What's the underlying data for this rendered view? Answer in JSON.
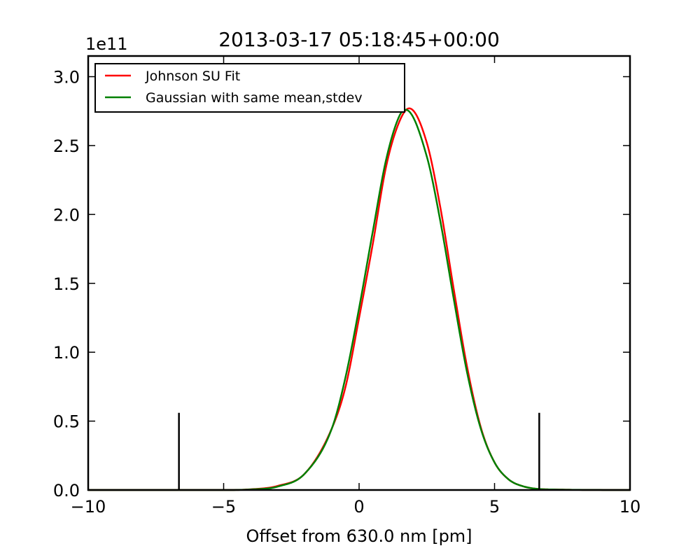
{
  "chart_data": {
    "type": "line",
    "title": "2013-03-17 05:18:45+00:00",
    "xlabel": "Offset from 630.0 nm [pm]",
    "ylabel": "",
    "y_multiplier_label": "1e11",
    "xlim": [
      -10,
      10
    ],
    "ylim": [
      0,
      3.15
    ],
    "x_ticks": [
      -10,
      -5,
      0,
      5,
      10
    ],
    "x_tick_labels": [
      "−10",
      "−5",
      "0",
      "5",
      "10"
    ],
    "y_ticks": [
      0.0,
      0.5,
      1.0,
      1.5,
      2.0,
      2.5,
      3.0
    ],
    "y_tick_labels": [
      "0.0",
      "0.5",
      "1.0",
      "1.5",
      "2.0",
      "2.5",
      "3.0"
    ],
    "grid": false,
    "legend_position": "upper-left",
    "series": [
      {
        "name": "Johnson SU Fit",
        "color": "#ff0000",
        "x": [
          -10,
          -6,
          -5,
          -4,
          -3,
          -2,
          -1,
          -0.5,
          0,
          0.5,
          1,
          1.5,
          1.85,
          2.5,
          3,
          3.5,
          4,
          4.5,
          5,
          5.5,
          6,
          7,
          10
        ],
        "y": [
          0,
          0.0,
          0.0,
          0.005,
          0.03,
          0.12,
          0.45,
          0.75,
          1.25,
          1.78,
          2.35,
          2.68,
          2.77,
          2.52,
          2.05,
          1.45,
          0.88,
          0.45,
          0.2,
          0.08,
          0.03,
          0.004,
          0
        ]
      },
      {
        "name": "Gaussian with same mean,stdev",
        "color": "#008000",
        "x": [
          -10,
          -6,
          -5,
          -4,
          -3,
          -2,
          -1,
          -0.5,
          0,
          0.5,
          1,
          1.5,
          1.72,
          2.5,
          3,
          3.5,
          4,
          4.5,
          5,
          5.5,
          6,
          7,
          10
        ],
        "y": [
          0,
          0.0,
          0.0,
          0.004,
          0.025,
          0.12,
          0.45,
          0.82,
          1.32,
          1.87,
          2.4,
          2.72,
          2.76,
          2.42,
          1.95,
          1.38,
          0.84,
          0.44,
          0.2,
          0.08,
          0.03,
          0.004,
          0
        ]
      }
    ],
    "vertical_markers": [
      {
        "x": -6.65,
        "y_top": 0.56,
        "color": "#000000"
      },
      {
        "x": 6.65,
        "y_top": 0.56,
        "color": "#000000"
      }
    ]
  }
}
